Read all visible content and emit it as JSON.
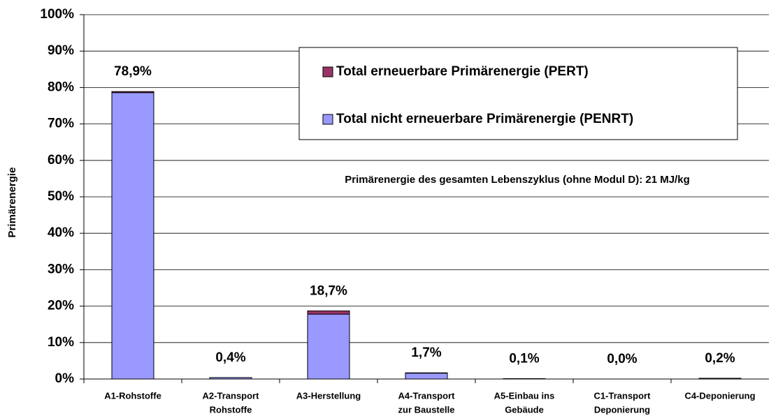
{
  "chart_data": {
    "type": "stacked_bar",
    "y_label": "Primärenergie",
    "annotation": "Primärenergie des gesamten Lebenszyklus (ohne  Modul D): 21 MJ/kg",
    "categories": [
      [
        "A1-Rohstoffe"
      ],
      [
        "A2-Transport",
        "Rohstoffe"
      ],
      [
        "A3-Herstellung"
      ],
      [
        "A4-Transport",
        "zur Baustelle"
      ],
      [
        "A5-Einbau ins",
        "Gebäude"
      ],
      [
        "C1-Transport",
        "Deponierung"
      ],
      [
        "C4-Deponierung"
      ]
    ],
    "series": [
      {
        "name": "Total nicht erneuerbare Primärenergie (PENRT)",
        "color": "#9999ff",
        "values": [
          78.6,
          0.4,
          17.8,
          1.6,
          0.1,
          0.0,
          0.2
        ]
      },
      {
        "name": "Total erneuerbare Primärenergie (PERT)",
        "color": "#993366",
        "values": [
          0.3,
          0.0,
          0.9,
          0.1,
          0.0,
          0.0,
          0.0
        ]
      }
    ],
    "totals": [
      78.9,
      0.4,
      18.7,
      1.7,
      0.1,
      0.0,
      0.2
    ],
    "total_labels": [
      "78,9%",
      "0,4%",
      "18,7%",
      "1,7%",
      "0,1%",
      "0,0%",
      "0,2%"
    ],
    "ylim": [
      0,
      100
    ],
    "yticks": [
      {
        "value": 0,
        "label": "0%"
      },
      {
        "value": 10,
        "label": "10%"
      },
      {
        "value": 20,
        "label": "20%"
      },
      {
        "value": 30,
        "label": "30%"
      },
      {
        "value": 40,
        "label": "40%"
      },
      {
        "value": 50,
        "label": "50%"
      },
      {
        "value": 60,
        "label": "60%"
      },
      {
        "value": 70,
        "label": "70%"
      },
      {
        "value": 80,
        "label": "80%"
      },
      {
        "value": 90,
        "label": "90%"
      },
      {
        "value": 100,
        "label": "100%"
      }
    ],
    "grid": true
  }
}
